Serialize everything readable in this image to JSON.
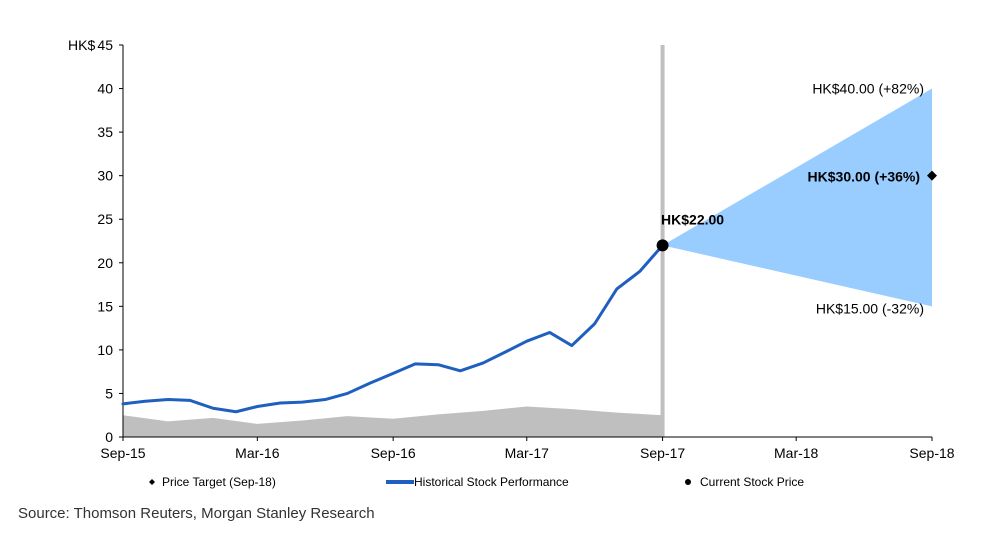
{
  "chart_data": {
    "type": "line",
    "y_unit_label": "HK$",
    "ylim": [
      0,
      45
    ],
    "y_ticks": [
      0,
      5,
      10,
      15,
      20,
      25,
      30,
      35,
      40,
      45
    ],
    "x_range": [
      "Sep-15",
      "Sep-18"
    ],
    "x_ticks": [
      "Sep-15",
      "Mar-16",
      "Sep-16",
      "Mar-17",
      "Sep-17",
      "Mar-18",
      "Sep-18"
    ],
    "grid": false,
    "legend_position": "bottom",
    "series": [
      {
        "name": "Historical Stock Performance",
        "type": "line",
        "color": "#1f5fbf",
        "x": [
          "2015-09-01",
          "2015-10-01",
          "2015-11-01",
          "2015-12-01",
          "2016-01-01",
          "2016-02-01",
          "2016-03-01",
          "2016-04-01",
          "2016-05-01",
          "2016-06-01",
          "2016-07-01",
          "2016-08-01",
          "2016-09-01",
          "2016-10-01",
          "2016-11-01",
          "2016-12-01",
          "2017-01-01",
          "2017-02-01",
          "2017-03-01",
          "2017-04-01",
          "2017-05-01",
          "2017-06-01",
          "2017-07-01",
          "2017-08-01",
          "2017-09-01"
        ],
        "y": [
          3.8,
          4.1,
          4.3,
          4.2,
          3.3,
          2.9,
          3.5,
          3.9,
          4.0,
          4.3,
          5.0,
          6.2,
          7.3,
          8.4,
          8.3,
          7.6,
          8.5,
          9.8,
          11.0,
          12.0,
          10.5,
          13.0,
          17.0,
          19.0,
          22.0
        ]
      },
      {
        "name": "Price Target (Sep-18)",
        "type": "point",
        "color": "#000000",
        "x": [
          "2018-09-01"
        ],
        "y": [
          30.0
        ]
      },
      {
        "name": "Current Stock Price",
        "type": "point",
        "color": "#000000",
        "x": [
          "2017-09-01"
        ],
        "y": [
          22.0
        ]
      }
    ],
    "forecast_band": {
      "color": "#99ccff",
      "x": [
        "2017-09-01",
        "2018-09-01"
      ],
      "upper": [
        22.0,
        40.0
      ],
      "lower": [
        22.0,
        15.0
      ]
    },
    "volume": {
      "color": "#bfbfbf",
      "x": [
        "2015-09-01",
        "2015-11-01",
        "2016-01-01",
        "2016-03-01",
        "2016-05-01",
        "2016-07-01",
        "2016-09-01",
        "2016-11-01",
        "2017-01-01",
        "2017-03-01",
        "2017-05-01",
        "2017-07-01",
        "2017-09-01"
      ],
      "values": [
        2.5,
        1.8,
        2.2,
        1.5,
        1.9,
        2.4,
        2.1,
        2.6,
        3.0,
        3.5,
        3.2,
        2.8,
        2.5
      ]
    },
    "current_marker_line": {
      "x": "2017-09-01",
      "color": "#bfbfbf"
    },
    "annotations": [
      {
        "text": "HK$22.00",
        "x": "2017-09-01",
        "y": 22.0,
        "bold": true
      },
      {
        "text": "HK$40.00 (+82%)",
        "x": "2018-09-01",
        "y": 40.0,
        "bold": false
      },
      {
        "text": "HK$30.00 (+36%)",
        "x": "2018-09-01",
        "y": 30.0,
        "bold": true
      },
      {
        "text": "HK$15.00 (-32%)",
        "x": "2018-09-01",
        "y": 15.0,
        "bold": false
      }
    ]
  },
  "legend": [
    {
      "label": "Price Target (Sep-18)",
      "marker": "diamond-small"
    },
    {
      "label": "Historical Stock Performance",
      "marker": "line"
    },
    {
      "label": "Current Stock Price",
      "marker": "dot"
    }
  ],
  "source_note": "Source: Thomson Reuters, Morgan Stanley Research"
}
